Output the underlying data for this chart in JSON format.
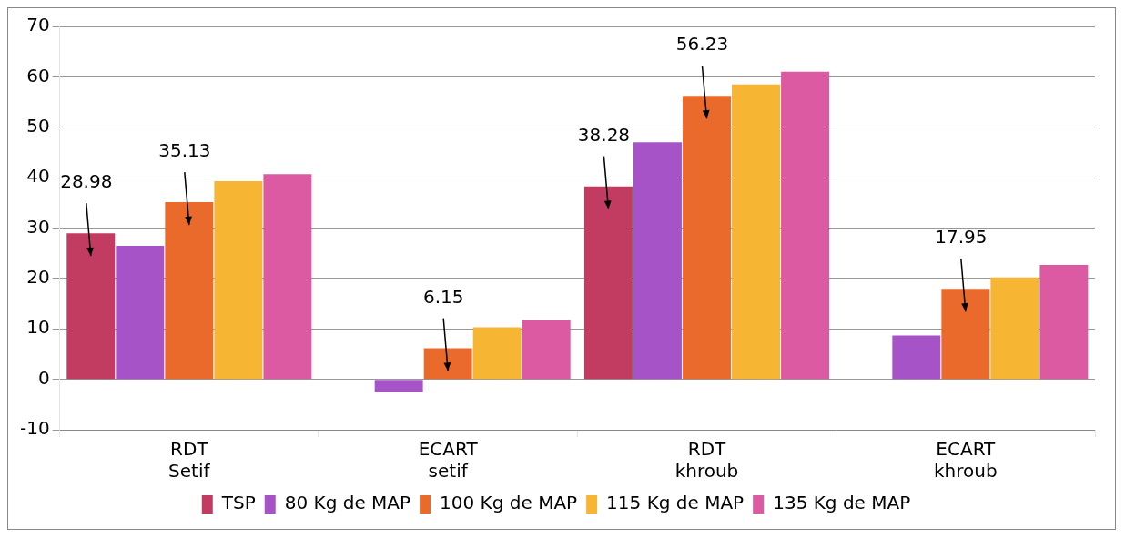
{
  "chart_data": {
    "type": "bar",
    "categories": [
      "RDT\nSetif",
      "ECART\nsetif",
      "RDT\nkhroub",
      "ECART\nkhroub"
    ],
    "series": [
      {
        "name": "TSP",
        "color": "#c23c62",
        "values": [
          28.98,
          null,
          38.28,
          null
        ],
        "value_labels": [
          "28.98",
          null,
          "38.28",
          null
        ]
      },
      {
        "name": "80 Kg de MAP",
        "color": "#a653c8",
        "values": [
          26.5,
          -2.5,
          47,
          8.7
        ]
      },
      {
        "name": "100 Kg de MAP",
        "color": "#ea6a2c",
        "values": [
          35.13,
          6.15,
          56.23,
          17.95
        ],
        "value_labels": [
          "35.13",
          "6.15",
          "56.23",
          "17.95"
        ]
      },
      {
        "name": "115 Kg de MAP",
        "color": "#f7b534",
        "values": [
          39.3,
          10.3,
          58.5,
          20.2
        ]
      },
      {
        "name": "135 Kg de MAP",
        "color": "#db5aa2",
        "values": [
          40.7,
          11.7,
          61,
          22.7
        ]
      }
    ],
    "ylim": [
      -10,
      70
    ],
    "yticks": [
      -10,
      0,
      10,
      20,
      30,
      40,
      50,
      60,
      70
    ],
    "grid": "y",
    "legend": "bottom"
  }
}
